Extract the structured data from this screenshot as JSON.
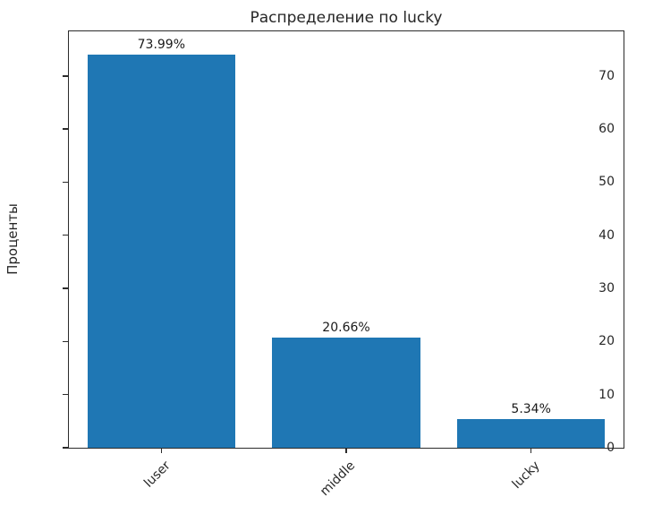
{
  "chart_data": {
    "type": "bar",
    "title": "Распределение по lucky",
    "xlabel": "",
    "ylabel": "Проценты",
    "categories": [
      "luser",
      "middle",
      "lucky"
    ],
    "values": [
      73.99,
      20.66,
      5.34
    ],
    "bar_labels": [
      "73.99%",
      "20.66%",
      "5.34%"
    ],
    "yticks": [
      0,
      10,
      20,
      30,
      40,
      50,
      60,
      70
    ],
    "ylim": [
      0,
      78.4
    ],
    "bar_color": "#1f77b4",
    "axis_color": "#2b2b2b",
    "grid": false,
    "legend": null,
    "xtick_rotation": 45,
    "bar_width_fraction": 0.8
  }
}
